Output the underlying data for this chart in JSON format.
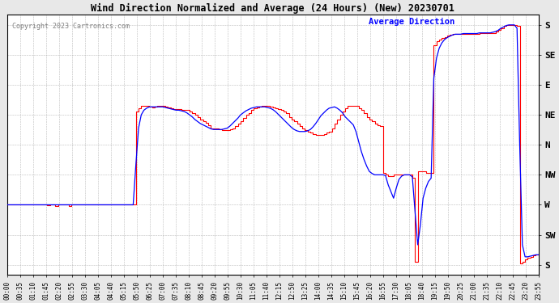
{
  "title": "Wind Direction Normalized and Average (24 Hours) (New) 20230701",
  "copyright": "Copyright 2023 Cartronics.com",
  "legend_label": "Average Direction",
  "background_color": "#e8e8e8",
  "plot_bg_color": "#ffffff",
  "grid_color": "#aaaaaa",
  "red_color": "#ff0000",
  "blue_color": "#0000ff",
  "y_labels": [
    "S",
    "SW",
    "W",
    "NW",
    "N",
    "NE",
    "E",
    "SE",
    "S"
  ],
  "y_ticks": [
    0,
    45,
    90,
    135,
    180,
    225,
    270,
    315,
    360
  ],
  "ylim": [
    -15,
    375
  ],
  "time_labels": [
    "00:00",
    "00:35",
    "01:10",
    "01:45",
    "02:20",
    "02:55",
    "03:30",
    "04:05",
    "04:40",
    "05:15",
    "05:50",
    "06:25",
    "07:00",
    "07:35",
    "08:10",
    "08:45",
    "09:20",
    "09:55",
    "10:30",
    "11:05",
    "11:40",
    "12:15",
    "12:50",
    "13:25",
    "14:00",
    "14:35",
    "15:10",
    "15:45",
    "16:20",
    "16:55",
    "17:30",
    "18:05",
    "18:40",
    "19:15",
    "19:50",
    "20:25",
    "21:00",
    "21:35",
    "22:10",
    "22:45",
    "23:20",
    "23:55"
  ],
  "raw_y": [
    90,
    90,
    90,
    90,
    90,
    90,
    90,
    90,
    90,
    90,
    90,
    90,
    90,
    90,
    90,
    89,
    90,
    90,
    88,
    90,
    90,
    90,
    90,
    88,
    90,
    90,
    90,
    90,
    90,
    90,
    90,
    90,
    90,
    90,
    90,
    90,
    90,
    90,
    90,
    90,
    90,
    90,
    90,
    90,
    90,
    90,
    90,
    90,
    230,
    235,
    238,
    238,
    238,
    237,
    236,
    237,
    238,
    238,
    238,
    237,
    236,
    235,
    234,
    234,
    234,
    233,
    233,
    232,
    230,
    228,
    225,
    222,
    218,
    215,
    213,
    210,
    205,
    205,
    205,
    203,
    202,
    202,
    202,
    203,
    205,
    208,
    212,
    215,
    220,
    225,
    228,
    232,
    235,
    236,
    237,
    238,
    238,
    238,
    237,
    236,
    235,
    234,
    232,
    230,
    228,
    222,
    218,
    215,
    212,
    208,
    205,
    202,
    200,
    198,
    196,
    195,
    195,
    195,
    196,
    198,
    200,
    205,
    212,
    218,
    225,
    230,
    235,
    238,
    238,
    238,
    238,
    235,
    232,
    228,
    222,
    218,
    215,
    212,
    210,
    208,
    138,
    135,
    133,
    133,
    135,
    135,
    136,
    135,
    135,
    135,
    135,
    130,
    5,
    140,
    140,
    140,
    138,
    138,
    138,
    330,
    335,
    338,
    340,
    342,
    344,
    345,
    346,
    346,
    346,
    347,
    347,
    347,
    347,
    347,
    347,
    347,
    348,
    348,
    348,
    348,
    348,
    348,
    350,
    352,
    355,
    358,
    360,
    360,
    360,
    360,
    358,
    2,
    5,
    8,
    10,
    12,
    14,
    15,
    16
  ],
  "avg_y": [
    90,
    90,
    90,
    90,
    90,
    90,
    90,
    90,
    90,
    90,
    90,
    90,
    90,
    90,
    90,
    90,
    90,
    90,
    90,
    90,
    90,
    90,
    90,
    90,
    90,
    90,
    90,
    90,
    90,
    90,
    90,
    90,
    90,
    90,
    90,
    90,
    90,
    90,
    90,
    90,
    90,
    90,
    90,
    90,
    90,
    90,
    90,
    90,
    150,
    205,
    225,
    232,
    235,
    237,
    237,
    237,
    237,
    237,
    237,
    236,
    235,
    234,
    233,
    232,
    232,
    231,
    230,
    228,
    225,
    222,
    218,
    215,
    212,
    210,
    208,
    206,
    204,
    203,
    203,
    203,
    203,
    204,
    205,
    208,
    212,
    216,
    220,
    225,
    228,
    231,
    233,
    235,
    236,
    237,
    237,
    237,
    237,
    236,
    235,
    233,
    230,
    226,
    222,
    218,
    214,
    210,
    206,
    203,
    201,
    200,
    200,
    200,
    201,
    203,
    207,
    212,
    218,
    224,
    228,
    232,
    235,
    236,
    237,
    235,
    232,
    228,
    222,
    218,
    214,
    210,
    200,
    185,
    170,
    158,
    148,
    140,
    137,
    135,
    135,
    135,
    135,
    134,
    120,
    110,
    100,
    115,
    128,
    133,
    135,
    135,
    135,
    132,
    80,
    30,
    60,
    100,
    115,
    125,
    130,
    280,
    310,
    325,
    333,
    338,
    341,
    343,
    345,
    346,
    346,
    346,
    347,
    347,
    347,
    347,
    347,
    347,
    348,
    348,
    348,
    348,
    348,
    349,
    350,
    352,
    355,
    357,
    359,
    360,
    360,
    360,
    355,
    180,
    30,
    12,
    12,
    13,
    14,
    15,
    15
  ]
}
